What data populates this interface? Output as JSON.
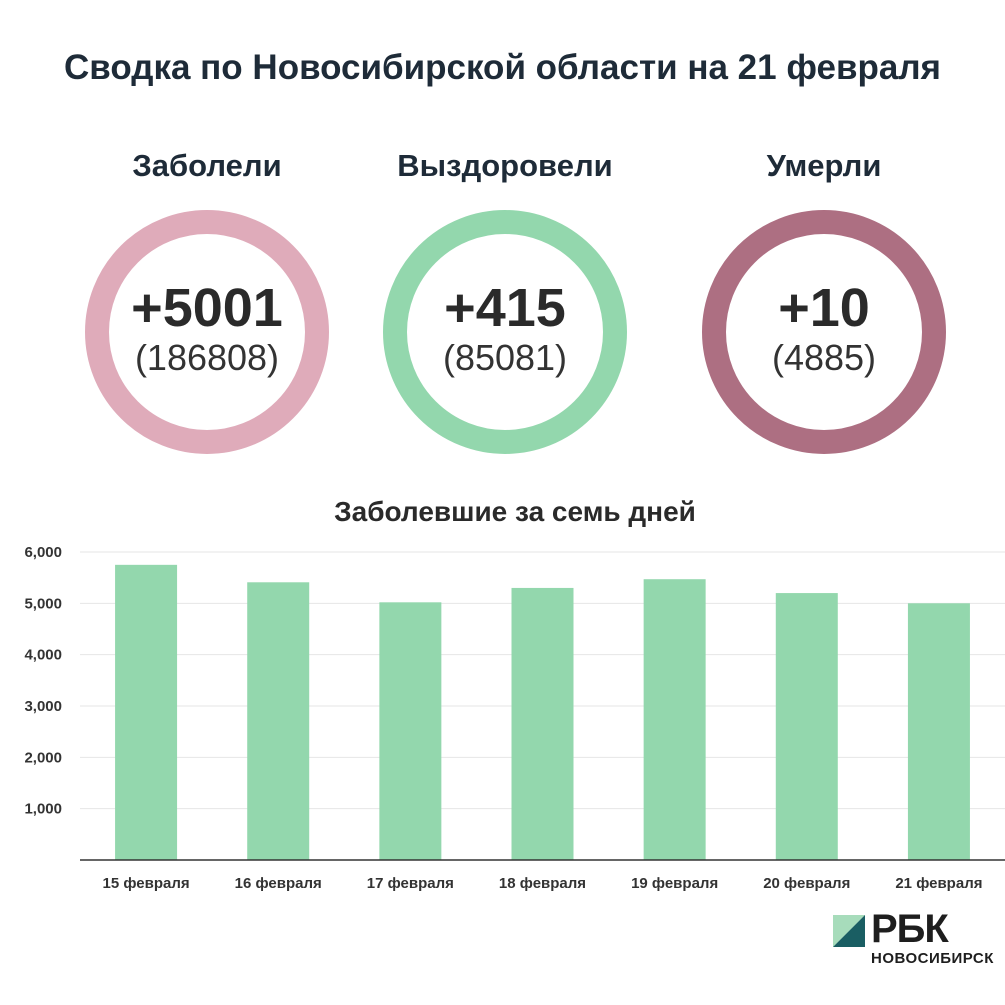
{
  "title": "Сводка по Новосибирской области на 21 февраля",
  "stats": [
    {
      "label": "Заболели",
      "delta": "+5001",
      "total": "(186808)",
      "color": "#dfabba"
    },
    {
      "label": "Выздоровели",
      "delta": "+415",
      "total": "(85081)",
      "color": "#93d7ad"
    },
    {
      "label": "Умерли",
      "delta": "+10",
      "total": "(4885)",
      "color": "#ad6f82"
    }
  ],
  "chart_data": {
    "type": "bar",
    "title": "Заболевшие за семь дней",
    "categories": [
      "15 февраля",
      "16 февраля",
      "17 февраля",
      "18 февраля",
      "19 февраля",
      "20 февраля",
      "21 февраля"
    ],
    "values": [
      5750,
      5410,
      5020,
      5300,
      5470,
      5200,
      5001
    ],
    "ylim": [
      0,
      6000
    ],
    "yticks": [
      1000,
      2000,
      3000,
      4000,
      5000,
      6000
    ],
    "ytick_labels": [
      "1,000",
      "2,000",
      "3,000",
      "4,000",
      "5,000",
      "6,000"
    ],
    "grid": true,
    "bar_color": "#93d7ad"
  },
  "logo": {
    "name": "РБК",
    "region": "НОВОСИБИРСК",
    "mark_light": "#a7dcbb",
    "mark_dark": "#1a5e63"
  }
}
